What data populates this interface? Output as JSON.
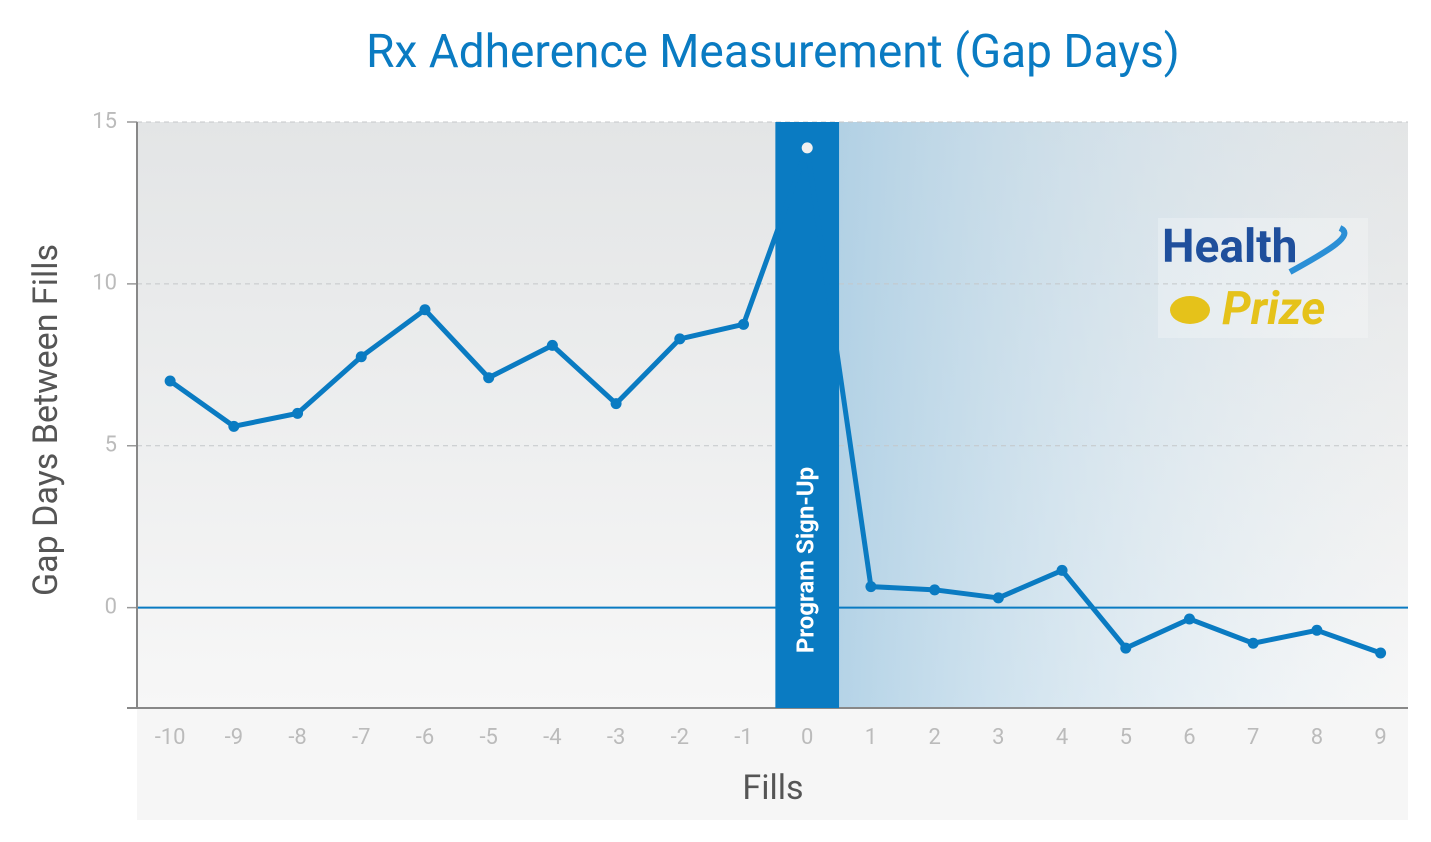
{
  "chart_data": {
    "type": "line",
    "title": "Rx Adherence Measurement (Gap Days)",
    "x_label": "Fills",
    "y_label": "Gap Days Between Fills",
    "x": [
      -10,
      -9,
      -8,
      -7,
      -6,
      -5,
      -4,
      -3,
      -2,
      -1,
      0,
      1,
      2,
      3,
      4,
      5,
      6,
      7,
      8,
      9
    ],
    "series": [
      {
        "name": "Gap Days",
        "color": "#0a7bc2",
        "values": [
          7.0,
          5.6,
          6.0,
          7.75,
          9.2,
          7.1,
          8.1,
          6.3,
          8.3,
          8.75,
          14.2,
          0.65,
          0.55,
          0.3,
          1.15,
          -1.25,
          -0.35,
          -1.1,
          -0.7,
          -1.4
        ]
      }
    ],
    "xlim": [
      -10.52,
      9.43
    ],
    "ylim": [
      -3.1,
      15
    ],
    "xticks": [
      -10,
      -9,
      -8,
      -7,
      -6,
      -5,
      -4,
      -3,
      -2,
      -1,
      0,
      1,
      2,
      3,
      4,
      5,
      6,
      7,
      8,
      9
    ],
    "yticks": [
      0,
      5,
      10,
      15
    ],
    "grid": true,
    "annotation": {
      "label": "Program Sign-Up",
      "x": 0
    },
    "logo": {
      "line1": "Health",
      "line2": "Prize"
    }
  }
}
